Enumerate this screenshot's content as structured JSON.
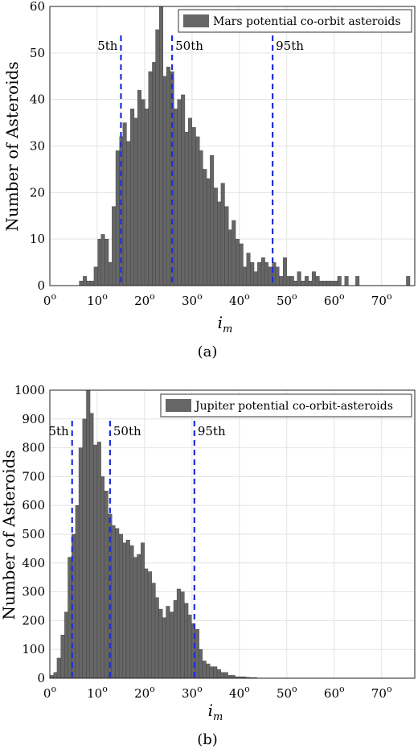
{
  "chart_data": [
    {
      "type": "bar",
      "xlabel": "i",
      "xlabel_sub": "m",
      "ylabel": "Number of Asteroids",
      "caption": "(a)",
      "legend": {
        "label": "Mars potential co-orbit asteroids",
        "placement": "top-right",
        "color": "#666666"
      },
      "xlim": [
        0,
        77
      ],
      "ylim": [
        0,
        60
      ],
      "xticks": [
        0,
        10,
        20,
        30,
        40,
        50,
        60,
        70
      ],
      "xtick_labels": [
        "0o",
        "10o",
        "20o",
        "30o",
        "40o",
        "50o",
        "60o",
        "70o"
      ],
      "yticks": [
        0,
        10,
        20,
        30,
        40,
        50,
        60
      ],
      "grid": true,
      "bar_color": "#666666",
      "bin_width": 0.77,
      "x": [
        6.6,
        7.4,
        8.2,
        8.9,
        9.7,
        10.5,
        11.2,
        12.0,
        12.8,
        13.5,
        14.3,
        15.1,
        15.8,
        16.6,
        17.4,
        18.1,
        18.9,
        19.7,
        20.4,
        21.2,
        22.0,
        22.7,
        23.5,
        24.3,
        25.0,
        25.8,
        26.6,
        27.3,
        28.1,
        28.9,
        29.6,
        30.4,
        31.2,
        31.9,
        32.7,
        33.5,
        34.2,
        35.0,
        35.8,
        36.5,
        37.3,
        38.1,
        38.8,
        39.6,
        40.4,
        41.1,
        41.9,
        42.7,
        43.4,
        44.2,
        45.0,
        45.7,
        46.5,
        47.3,
        48.0,
        48.8,
        49.6,
        50.3,
        51.1,
        51.9,
        52.6,
        53.4,
        54.2,
        54.9,
        55.7,
        56.5,
        57.2,
        58.0,
        58.8,
        59.5,
        60.3,
        61.1,
        61.8,
        62.6,
        63.4,
        64.1,
        64.9,
        65.7,
        66.4,
        67.2,
        68.0,
        68.7,
        69.5,
        70.3,
        71.0,
        71.8,
        72.6,
        73.3,
        74.1,
        74.9,
        75.6
      ],
      "values": [
        1,
        2,
        1,
        1,
        4,
        10,
        11,
        10,
        5,
        17,
        29,
        32,
        35,
        31,
        38,
        36,
        42,
        40,
        38,
        46,
        48,
        55,
        60,
        45,
        47,
        46,
        38,
        40,
        41,
        33,
        36,
        34,
        32,
        29,
        25,
        23,
        28,
        21,
        18,
        22,
        17,
        12,
        14,
        10,
        9,
        4,
        7,
        5,
        3,
        5,
        6,
        5,
        4,
        5,
        4,
        2,
        6,
        2,
        2,
        1,
        3,
        1,
        2,
        1,
        3,
        2,
        1,
        1,
        1,
        1,
        1,
        2,
        0,
        2,
        0,
        0,
        2,
        0,
        0,
        0,
        0,
        0,
        0,
        0,
        0,
        0,
        0,
        0,
        0,
        0,
        2
      ],
      "percentiles": [
        {
          "label": "5th",
          "value": 15.0
        },
        {
          "label": "50th",
          "value": 25.8
        },
        {
          "label": "95th",
          "value": 47.0
        }
      ]
    },
    {
      "type": "bar",
      "xlabel": "i",
      "xlabel_sub": "m",
      "ylabel": "Number of Asteroids",
      "caption": "(b)",
      "legend": {
        "label": "Jupiter potential co-orbit-asteroids",
        "placement": "top-right",
        "color": "#666666"
      },
      "xlim": [
        0,
        77
      ],
      "ylim": [
        0,
        1000
      ],
      "xticks": [
        0,
        10,
        20,
        30,
        40,
        50,
        60,
        70
      ],
      "xtick_labels": [
        "0o",
        "10o",
        "20o",
        "30o",
        "40o",
        "50o",
        "60o",
        "70o"
      ],
      "yticks": [
        0,
        100,
        200,
        300,
        400,
        500,
        600,
        700,
        800,
        900,
        1000
      ],
      "grid": true,
      "bar_color": "#666666",
      "bin_width": 0.77,
      "x": [
        0.4,
        1.2,
        1.9,
        2.7,
        3.5,
        4.2,
        5.0,
        5.8,
        6.5,
        7.3,
        8.1,
        8.8,
        9.6,
        10.4,
        11.1,
        11.9,
        12.7,
        13.4,
        14.2,
        15.0,
        15.7,
        16.5,
        17.3,
        18.0,
        18.8,
        19.6,
        20.3,
        21.1,
        21.9,
        22.6,
        23.4,
        24.2,
        24.9,
        25.7,
        26.5,
        27.2,
        28.0,
        28.8,
        29.5,
        30.3,
        31.1,
        31.8,
        32.6,
        33.4,
        34.1,
        34.9,
        35.7,
        36.4,
        37.2,
        38.0,
        38.7,
        39.5,
        40.3,
        41.0,
        41.8,
        42.6,
        43.3
      ],
      "values": [
        10,
        20,
        70,
        150,
        230,
        420,
        500,
        600,
        800,
        900,
        1000,
        920,
        810,
        820,
        700,
        650,
        570,
        530,
        520,
        500,
        470,
        480,
        460,
        420,
        430,
        470,
        380,
        370,
        330,
        280,
        240,
        210,
        250,
        230,
        270,
        310,
        300,
        260,
        220,
        190,
        170,
        100,
        60,
        50,
        40,
        40,
        30,
        20,
        20,
        10,
        10,
        5,
        5,
        5,
        3,
        2,
        2
      ],
      "percentiles": [
        {
          "label": "5th",
          "value": 4.7
        },
        {
          "label": "50th",
          "value": 12.7
        },
        {
          "label": "95th",
          "value": 30.5
        }
      ]
    }
  ]
}
